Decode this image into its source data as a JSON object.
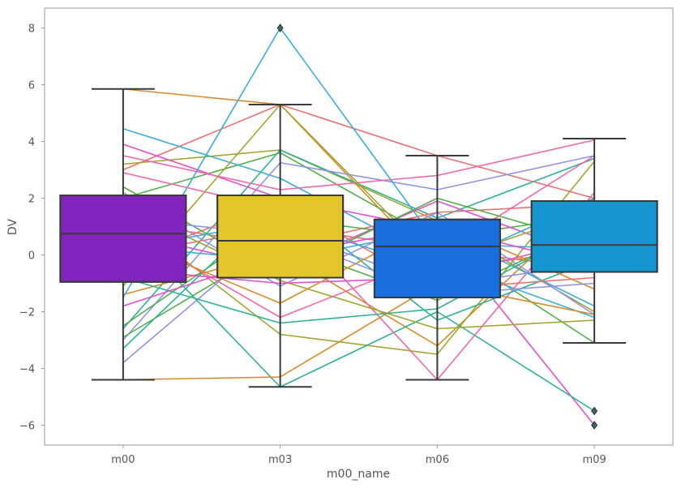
{
  "chart_data": {
    "type": "box",
    "title": "",
    "xlabel": "m00_name",
    "ylabel": "DV",
    "categories": [
      "m00",
      "m03",
      "m06",
      "m09"
    ],
    "ylim": [
      -6.7,
      8.7
    ],
    "yticks": [
      8,
      6,
      4,
      2,
      0,
      -2,
      -4,
      -6
    ],
    "ytick_labels": [
      "8",
      "6",
      "4",
      "2",
      "0",
      "−2",
      "−4",
      "−6"
    ],
    "grid": false,
    "legend": "none",
    "boxes": [
      {
        "category": "m00",
        "whisker_low": -4.4,
        "q1": -0.95,
        "median": 0.75,
        "q3": 2.1,
        "whisker_high": 5.85,
        "outliers": [],
        "color": "#8224BE"
      },
      {
        "category": "m03",
        "whisker_low": -4.65,
        "q1": -0.8,
        "median": 0.5,
        "q3": 2.1,
        "whisker_high": 5.3,
        "outliers": [
          8.0
        ],
        "color": "#E3C52C"
      },
      {
        "category": "m06",
        "whisker_low": -4.4,
        "q1": -1.5,
        "median": 0.3,
        "q3": 1.25,
        "whisker_high": 3.5,
        "outliers": [],
        "color": "#1A6FDE"
      },
      {
        "category": "m09",
        "whisker_low": -3.1,
        "q1": -0.6,
        "median": 0.35,
        "q3": 1.9,
        "whisker_high": 4.1,
        "outliers": [
          -5.5,
          -6.0
        ],
        "color": "#1596D0"
      }
    ],
    "lines": [
      {
        "color": "#F07070",
        "values": [
          3.0,
          5.3,
          3.5,
          2.0
        ]
      },
      {
        "color": "#D98B2B",
        "values": [
          5.85,
          5.3,
          -0.5,
          0.2
        ]
      },
      {
        "color": "#A3A52E",
        "values": [
          3.2,
          3.7,
          1.2,
          -2.0
        ]
      },
      {
        "color": "#52B04A",
        "values": [
          2.0,
          3.6,
          0.5,
          -3.1
        ]
      },
      {
        "color": "#2DB393",
        "values": [
          -2.6,
          3.7,
          1.3,
          3.4
        ]
      },
      {
        "color": "#3AAED8",
        "values": [
          4.45,
          2.7,
          -0.2,
          -2.2
        ]
      },
      {
        "color": "#8F94E8",
        "values": [
          -3.0,
          3.25,
          2.3,
          3.5
        ]
      },
      {
        "color": "#E34FD1",
        "values": [
          3.9,
          2.0,
          0.9,
          -6.0
        ]
      },
      {
        "color": "#F565A8",
        "values": [
          3.5,
          2.3,
          2.8,
          4.05
        ]
      },
      {
        "color": "#F07070",
        "values": [
          1.2,
          0.3,
          1.5,
          1.8
        ]
      },
      {
        "color": "#D98B2B",
        "values": [
          -1.4,
          0.1,
          -3.2,
          2.0
        ]
      },
      {
        "color": "#A3A52E",
        "values": [
          1.5,
          -2.8,
          -3.5,
          3.3
        ]
      },
      {
        "color": "#52B04A",
        "values": [
          -2.5,
          1.3,
          0.6,
          1.4
        ]
      },
      {
        "color": "#2DB393",
        "values": [
          1.1,
          -4.65,
          -2.0,
          -5.5
        ]
      },
      {
        "color": "#3AAED8",
        "values": [
          -1.5,
          8.0,
          0.4,
          0.2
        ]
      },
      {
        "color": "#8F94E8",
        "values": [
          -3.8,
          0.9,
          -1.1,
          -0.3
        ]
      },
      {
        "color": "#E34FD1",
        "values": [
          0.8,
          -0.5,
          1.9,
          -0.1
        ]
      },
      {
        "color": "#F565A8",
        "values": [
          2.9,
          1.6,
          -4.4,
          2.2
        ]
      },
      {
        "color": "#F07070",
        "values": [
          0.0,
          1.0,
          0.2,
          -0.5
        ]
      },
      {
        "color": "#D98B2B",
        "values": [
          -4.4,
          -4.3,
          -1.0,
          -2.1
        ]
      },
      {
        "color": "#A3A52E",
        "values": [
          1.7,
          -0.9,
          -2.6,
          -2.3
        ]
      },
      {
        "color": "#52B04A",
        "values": [
          -2.9,
          0.4,
          -1.6,
          1.0
        ]
      },
      {
        "color": "#2DB393",
        "values": [
          -3.3,
          2.0,
          -2.3,
          -0.2
        ]
      },
      {
        "color": "#3AAED8",
        "values": [
          0.3,
          -0.2,
          0.9,
          -1.8
        ]
      },
      {
        "color": "#8F94E8",
        "values": [
          2.2,
          -1.1,
          1.5,
          -2.1
        ]
      },
      {
        "color": "#E34FD1",
        "values": [
          -0.5,
          -1.0,
          -0.8,
          0.6
        ]
      },
      {
        "color": "#F565A8",
        "values": [
          1.0,
          -2.2,
          0.0,
          3.5
        ]
      },
      {
        "color": "#F07070",
        "values": [
          -0.2,
          1.9,
          -1.2,
          -0.8
        ]
      },
      {
        "color": "#D98B2B",
        "values": [
          0.6,
          -1.7,
          1.2,
          -1.2
        ]
      },
      {
        "color": "#A3A52E",
        "values": [
          -1.1,
          5.3,
          -0.3,
          1.6
        ]
      },
      {
        "color": "#52B04A",
        "values": [
          2.4,
          -0.7,
          2.0,
          0.4
        ]
      },
      {
        "color": "#2DB393",
        "values": [
          -0.8,
          -2.4,
          -1.9,
          1.1
        ]
      },
      {
        "color": "#3AAED8",
        "values": [
          0.2,
          1.2,
          -0.5,
          2.0
        ]
      },
      {
        "color": "#8F94E8",
        "values": [
          1.3,
          0.7,
          -1.4,
          -1.0
        ]
      },
      {
        "color": "#E34FD1",
        "values": [
          -1.8,
          0.0,
          1.0,
          -0.4
        ]
      }
    ]
  }
}
